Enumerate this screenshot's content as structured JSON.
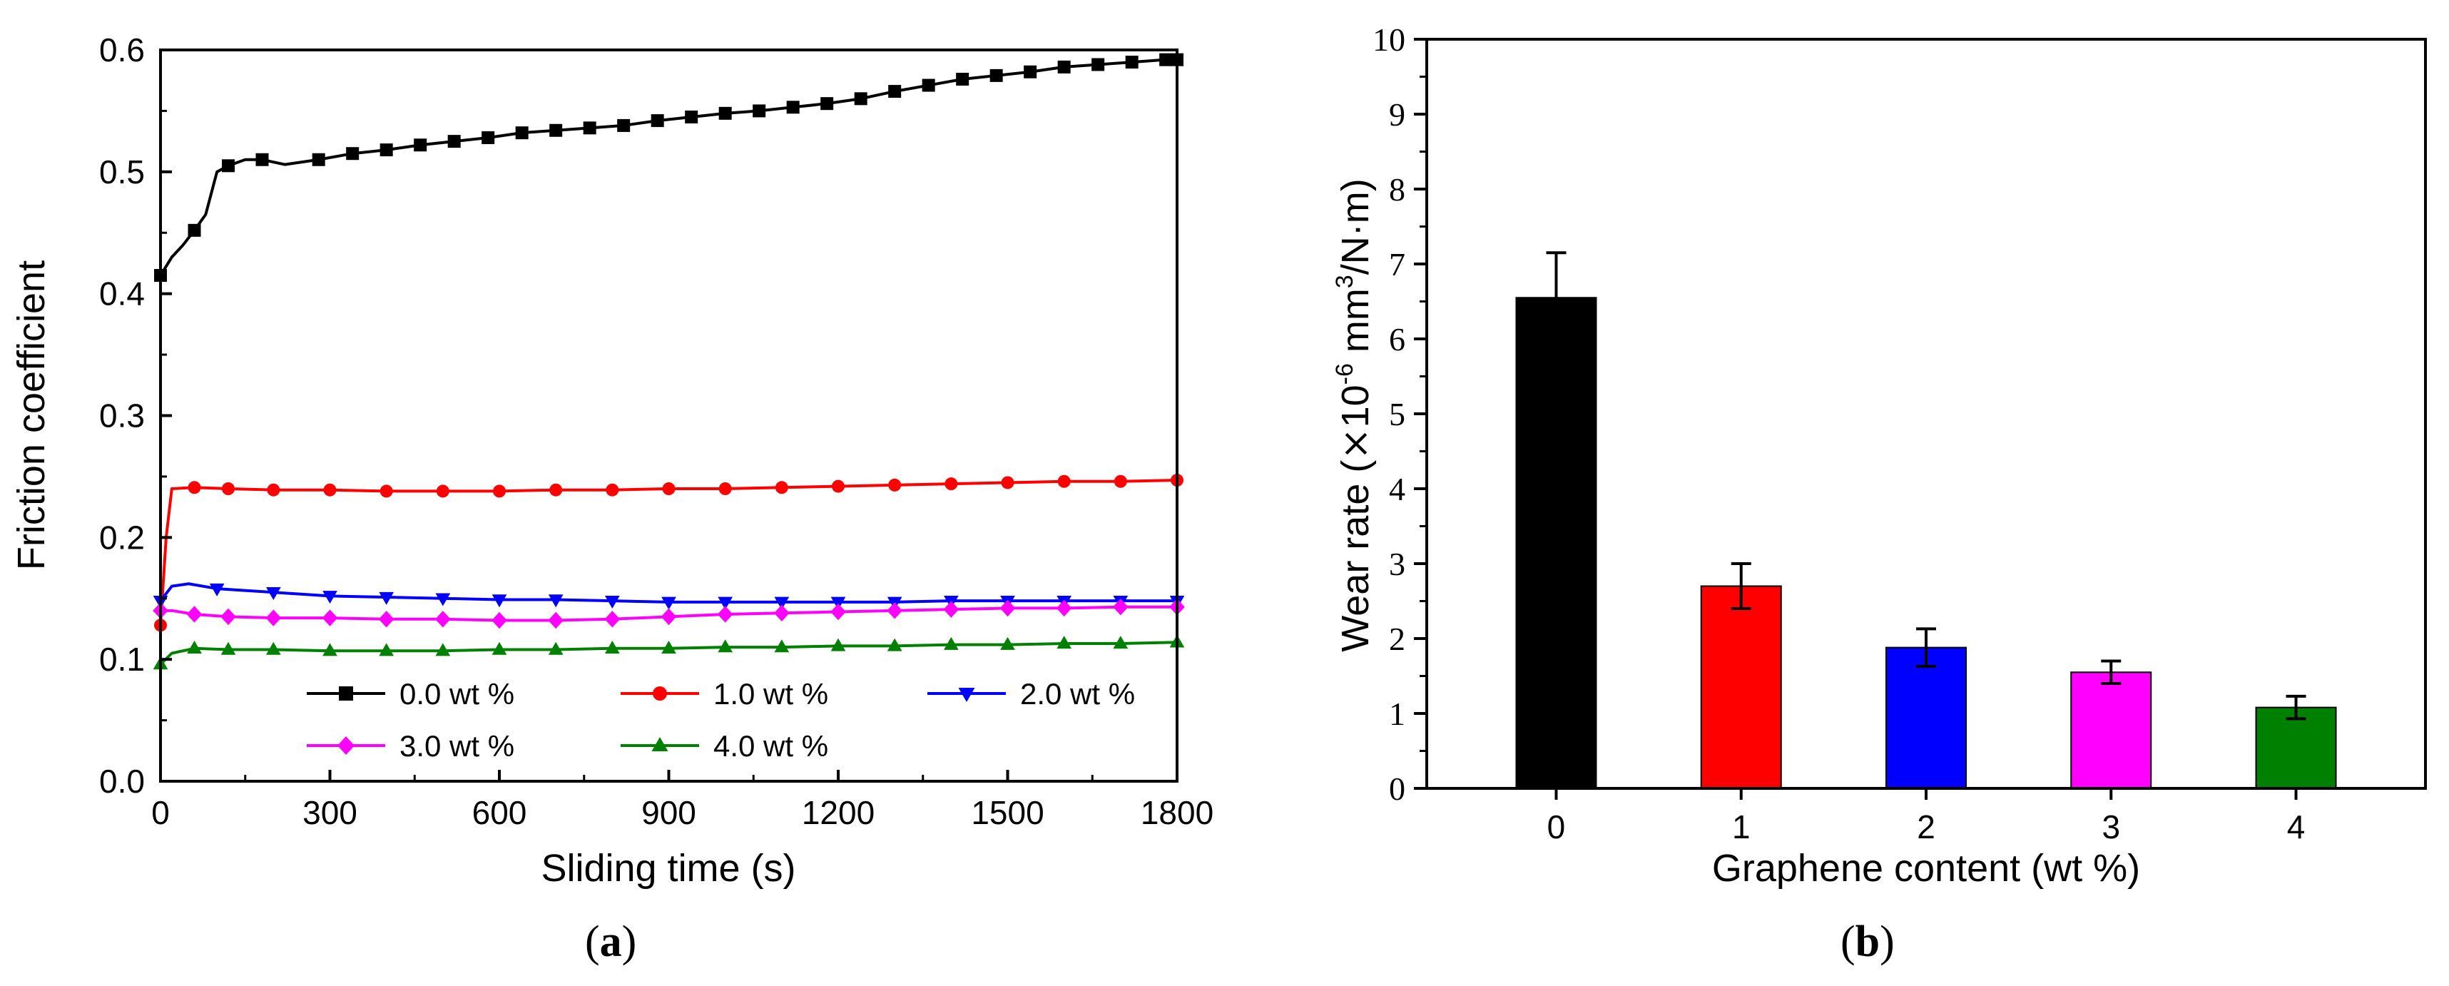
{
  "chart_data": [
    {
      "type": "line",
      "panel": "a",
      "xlabel": "Sliding time (s)",
      "ylabel": "Friction coefficient",
      "xlim": [
        0,
        1800
      ],
      "ylim": [
        0.0,
        0.6
      ],
      "xticks": [
        "0",
        "300",
        "600",
        "900",
        "1200",
        "1500",
        "1800"
      ],
      "yticks": [
        "0.0",
        "0.1",
        "0.2",
        "0.3",
        "0.4",
        "0.5",
        "0.6"
      ],
      "series": [
        {
          "name": "0.0 wt %",
          "color": "#000000",
          "marker": "square",
          "x": [
            0,
            20,
            40,
            60,
            80,
            100,
            120,
            150,
            180,
            220,
            280,
            340,
            400,
            460,
            520,
            580,
            640,
            700,
            760,
            820,
            880,
            940,
            1000,
            1060,
            1120,
            1180,
            1240,
            1300,
            1360,
            1420,
            1480,
            1540,
            1600,
            1660,
            1720,
            1780,
            1800
          ],
          "y": [
            0.415,
            0.43,
            0.44,
            0.452,
            0.465,
            0.5,
            0.505,
            0.51,
            0.51,
            0.506,
            0.51,
            0.515,
            0.518,
            0.522,
            0.525,
            0.528,
            0.532,
            0.534,
            0.536,
            0.538,
            0.542,
            0.545,
            0.548,
            0.55,
            0.553,
            0.556,
            0.56,
            0.566,
            0.571,
            0.576,
            0.579,
            0.582,
            0.586,
            0.588,
            0.59,
            0.592,
            0.592
          ]
        },
        {
          "name": "1.0 wt %",
          "color": "#ff0000",
          "marker": "circle",
          "x": [
            0,
            10,
            20,
            60,
            120,
            200,
            300,
            400,
            500,
            600,
            700,
            800,
            900,
            1000,
            1100,
            1200,
            1300,
            1400,
            1500,
            1600,
            1700,
            1800
          ],
          "y": [
            0.128,
            0.2,
            0.24,
            0.241,
            0.24,
            0.239,
            0.239,
            0.238,
            0.238,
            0.238,
            0.239,
            0.239,
            0.24,
            0.24,
            0.241,
            0.242,
            0.243,
            0.244,
            0.245,
            0.246,
            0.246,
            0.247
          ]
        },
        {
          "name": "2.0 wt %",
          "color": "#0000ff",
          "marker": "triangle-down",
          "x": [
            0,
            20,
            50,
            100,
            200,
            300,
            400,
            500,
            600,
            700,
            800,
            900,
            1000,
            1100,
            1200,
            1300,
            1400,
            1500,
            1600,
            1700,
            1800
          ],
          "y": [
            0.148,
            0.16,
            0.162,
            0.158,
            0.155,
            0.152,
            0.151,
            0.15,
            0.149,
            0.149,
            0.148,
            0.147,
            0.147,
            0.147,
            0.147,
            0.147,
            0.148,
            0.148,
            0.148,
            0.148,
            0.148
          ]
        },
        {
          "name": "3.0 wt %",
          "color": "#ff00ff",
          "marker": "diamond",
          "x": [
            0,
            20,
            60,
            120,
            200,
            300,
            400,
            500,
            600,
            700,
            800,
            900,
            1000,
            1100,
            1200,
            1300,
            1400,
            1500,
            1600,
            1700,
            1800
          ],
          "y": [
            0.14,
            0.14,
            0.137,
            0.135,
            0.134,
            0.134,
            0.133,
            0.133,
            0.132,
            0.132,
            0.133,
            0.135,
            0.137,
            0.138,
            0.139,
            0.14,
            0.141,
            0.142,
            0.142,
            0.143,
            0.143
          ]
        },
        {
          "name": "4.0 wt %",
          "color": "#008000",
          "marker": "triangle-up",
          "x": [
            0,
            20,
            60,
            120,
            200,
            300,
            400,
            500,
            600,
            700,
            800,
            900,
            1000,
            1100,
            1200,
            1300,
            1400,
            1500,
            1600,
            1700,
            1800
          ],
          "y": [
            0.096,
            0.105,
            0.109,
            0.108,
            0.108,
            0.107,
            0.107,
            0.107,
            0.108,
            0.108,
            0.109,
            0.109,
            0.11,
            0.11,
            0.111,
            0.111,
            0.112,
            0.112,
            0.113,
            0.113,
            0.114
          ]
        }
      ],
      "legend": [
        "0.0 wt %",
        "1.0 wt %",
        "2.0 wt %",
        "3.0 wt %",
        "4.0 wt %"
      ],
      "legend_position": "bottom",
      "caption": "(a)",
      "caption_letter": "a"
    },
    {
      "type": "bar",
      "panel": "b",
      "xlabel": "Graphene content (wt %)",
      "ylabel": "Wear rate (×10⁻⁶ mm³/N·m)",
      "ylabel_parts": {
        "prefix": "Wear rate (",
        "times": "×",
        "base": "10",
        "exp": "-6",
        "unit": " mm",
        "exp2": "3",
        "tail": "/N·m)"
      },
      "categories": [
        "0",
        "1",
        "2",
        "3",
        "4"
      ],
      "values": [
        6.55,
        2.7,
        1.88,
        1.55,
        1.08
      ],
      "errors": [
        0.6,
        0.3,
        0.25,
        0.15,
        0.15
      ],
      "colors": [
        "#000000",
        "#ff0000",
        "#0000ff",
        "#ff00ff",
        "#008000"
      ],
      "ylim": [
        0,
        10
      ],
      "yticks": [
        "0",
        "1",
        "2",
        "3",
        "4",
        "5",
        "6",
        "7",
        "8",
        "9",
        "10"
      ],
      "caption": "(b)",
      "caption_letter": "b"
    }
  ]
}
